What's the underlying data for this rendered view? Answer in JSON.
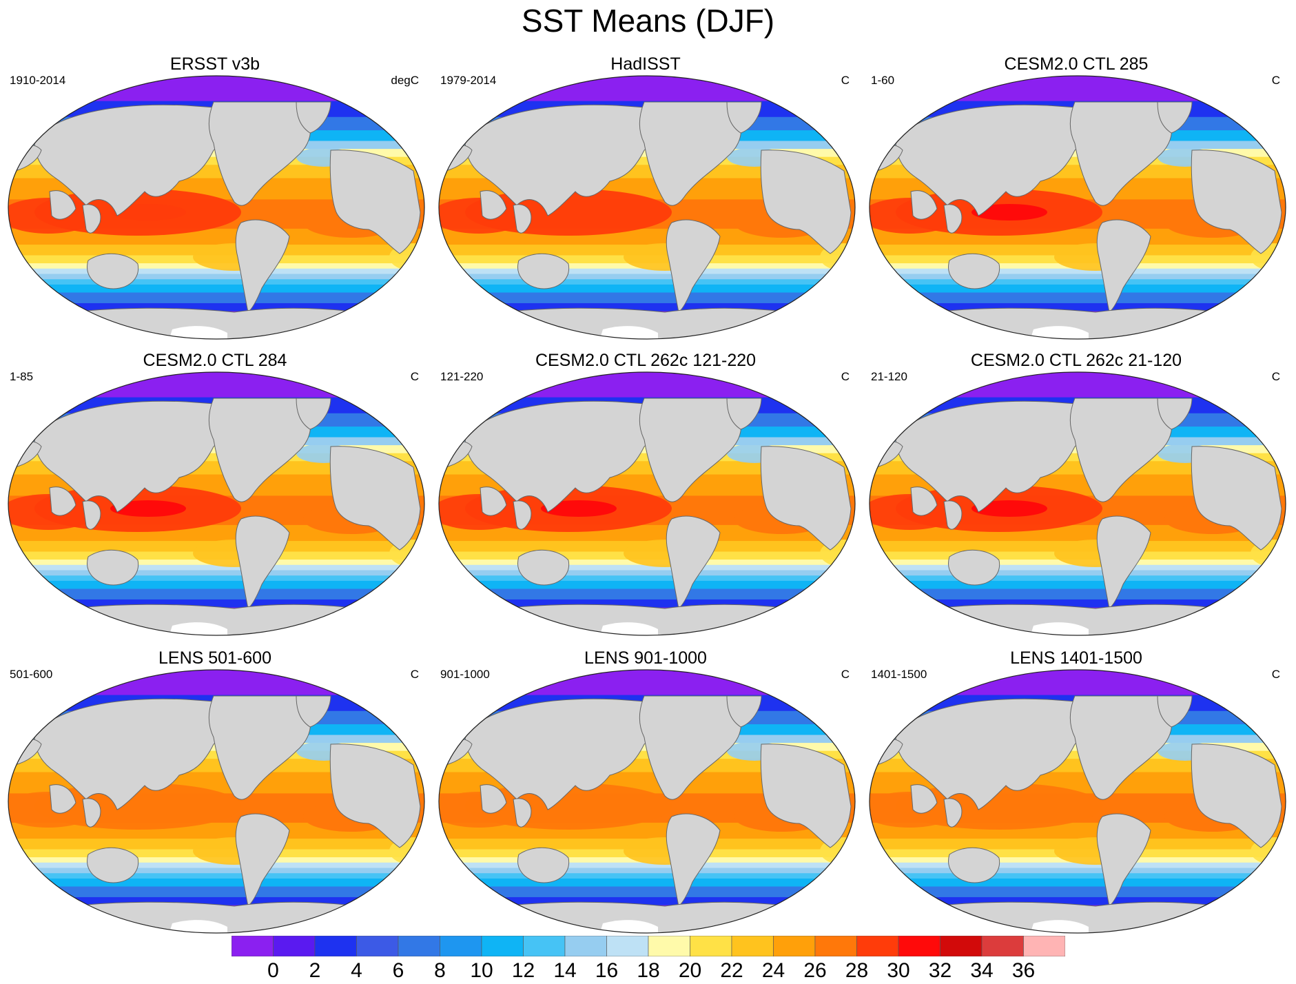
{
  "figure": {
    "title": "SST Means (DJF)"
  },
  "panels": [
    {
      "title": "ERSST v3b",
      "left_label": "1910-2014",
      "right_label": "degC",
      "style": "obs"
    },
    {
      "title": "HadISST",
      "left_label": "1979-2014",
      "right_label": "C",
      "style": "smooth"
    },
    {
      "title": "CESM2.0 CTL 285",
      "left_label": "1-60",
      "right_label": "C",
      "style": "model"
    },
    {
      "title": "CESM2.0 CTL 284",
      "left_label": "1-85",
      "right_label": "C",
      "style": "model"
    },
    {
      "title": "CESM2.0 CTL 262c 121-220",
      "left_label": "121-220",
      "right_label": "C",
      "style": "model"
    },
    {
      "title": "CESM2.0 CTL 262c 21-120",
      "left_label": "21-120",
      "right_label": "C",
      "style": "model"
    },
    {
      "title": "LENS 501-600",
      "left_label": "501-600",
      "right_label": "C",
      "style": "lens"
    },
    {
      "title": "LENS 901-1000",
      "left_label": "901-1000",
      "right_label": "C",
      "style": "lens"
    },
    {
      "title": "LENS 1401-1500",
      "left_label": "1401-1500",
      "right_label": "C",
      "style": "lens"
    }
  ],
  "colorbar": {
    "labels": [
      "0",
      "2",
      "4",
      "6",
      "8",
      "10",
      "12",
      "14",
      "16",
      "18",
      "20",
      "22",
      "24",
      "26",
      "28",
      "30",
      "32",
      "34",
      "36"
    ],
    "colors": [
      "#8B20F0",
      "#5A1AF0",
      "#1E32F0",
      "#3C5AE6",
      "#3278E6",
      "#1E96F0",
      "#0FB4F5",
      "#46C3F5",
      "#96CDF0",
      "#BEE1F5",
      "#FFFAAA",
      "#FFE146",
      "#FFC31E",
      "#FFA00A",
      "#FF780A",
      "#FF3C0A",
      "#FF0A0A",
      "#D20A0A",
      "#DC3C3C",
      "#FFB4B4"
    ],
    "land_color": "#D4D4D4"
  }
}
